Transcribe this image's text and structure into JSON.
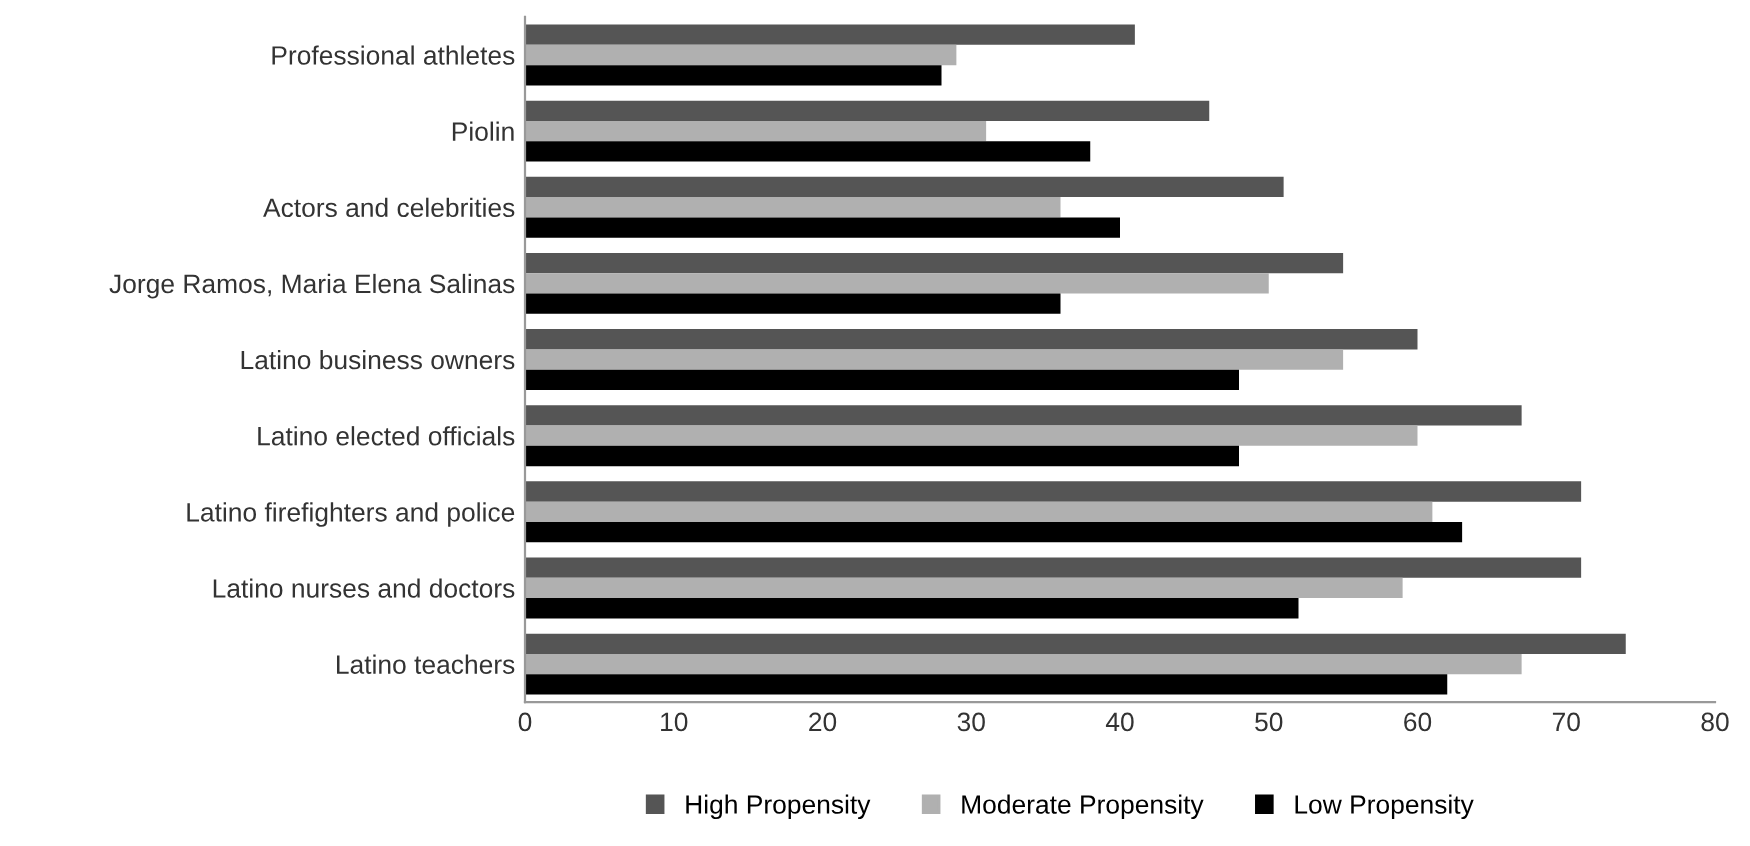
{
  "chart_data": {
    "type": "bar",
    "orientation": "horizontal",
    "categories": [
      "Professional athletes",
      "Piolin",
      "Actors and celebrities",
      "Jorge Ramos, Maria Elena Salinas",
      "Latino business owners",
      "Latino elected officials",
      "Latino firefighters and police",
      "Latino nurses and doctors",
      "Latino teachers"
    ],
    "series": [
      {
        "name": "High Propensity",
        "color": "#555555",
        "values": [
          41,
          46,
          51,
          55,
          60,
          67,
          71,
          71,
          74
        ]
      },
      {
        "name": "Moderate Propensity",
        "color": "#b0b0b0",
        "values": [
          29,
          31,
          36,
          50,
          55,
          60,
          61,
          59,
          67
        ]
      },
      {
        "name": "Low Propensity",
        "color": "#000000",
        "values": [
          28,
          38,
          40,
          36,
          48,
          48,
          63,
          52,
          62
        ]
      }
    ],
    "xlim": [
      0,
      80
    ],
    "xticks": [
      0,
      10,
      20,
      30,
      40,
      50,
      60,
      70,
      80
    ],
    "grid": false,
    "legend": "bottom"
  }
}
